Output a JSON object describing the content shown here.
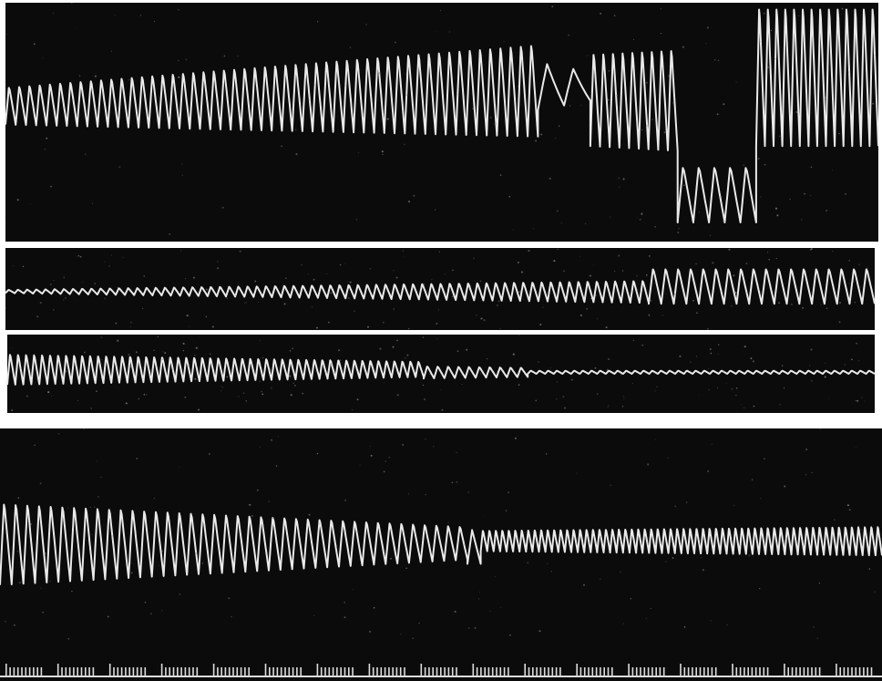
{
  "title": "",
  "colors": {
    "background_paper": "#ffffff",
    "panel": "#0b0b0b",
    "trace": "#e9e9e9",
    "timemarker": "#dcdcdc"
  },
  "panels": [
    {
      "id": "panel-1",
      "segments": [
        {
          "from": 0.0,
          "to": 0.61,
          "mid": 0.43,
          "amp_start": 0.08,
          "amp_end": 0.2,
          "mid_end": 0.36,
          "cycles": 52
        },
        {
          "from": 0.61,
          "to": 0.67,
          "mid": 0.35,
          "amp_start": 0.1,
          "amp_end": 0.06,
          "cycles": 2
        },
        {
          "from": 0.67,
          "to": 0.77,
          "mid": 0.4,
          "amp_start": 0.2,
          "amp_end": 0.22,
          "cycles": 9
        },
        {
          "from": 0.77,
          "to": 0.86,
          "mid": 0.8,
          "amp_start": 0.12,
          "amp_end": 0.12,
          "cycles": 5
        },
        {
          "from": 0.86,
          "to": 1.0,
          "mid": 0.3,
          "amp_start": 0.3,
          "amp_end": 0.3,
          "cycles": 14
        }
      ]
    },
    {
      "id": "panel-2",
      "segments": [
        {
          "from": 0.0,
          "to": 0.74,
          "mid": 0.53,
          "amp_start": 0.02,
          "amp_end": 0.14,
          "cycles": 70
        },
        {
          "from": 0.74,
          "to": 1.0,
          "mid": 0.46,
          "amp_start": 0.22,
          "amp_end": 0.22,
          "cycles": 18
        }
      ]
    },
    {
      "id": "panel-3",
      "segments": [
        {
          "from": 0.0,
          "to": 0.48,
          "mid": 0.44,
          "amp_start": 0.2,
          "amp_end": 0.1,
          "cycles": 52
        },
        {
          "from": 0.48,
          "to": 0.6,
          "mid": 0.48,
          "amp_start": 0.08,
          "amp_end": 0.06,
          "cycles": 10
        },
        {
          "from": 0.6,
          "to": 1.0,
          "mid": 0.48,
          "amp_start": 0.02,
          "amp_end": 0.02,
          "cycles": 40
        }
      ]
    },
    {
      "id": "panel-4",
      "segments": [
        {
          "from": 0.0,
          "to": 0.53,
          "mid": 0.54,
          "amp_start": 0.2,
          "amp_end": 0.08,
          "cycles": 40
        },
        {
          "from": 0.53,
          "to": 0.545,
          "mid": 0.56,
          "amp_start": 0.08,
          "amp_end": 0.08,
          "cycles": 1
        },
        {
          "from": 0.545,
          "to": 1.0,
          "mid": 0.53,
          "amp_start": 0.05,
          "amp_end": 0.07,
          "cycles": 62
        }
      ],
      "timemarker": {
        "groups": 17,
        "ticks_per_group": 10
      }
    }
  ]
}
